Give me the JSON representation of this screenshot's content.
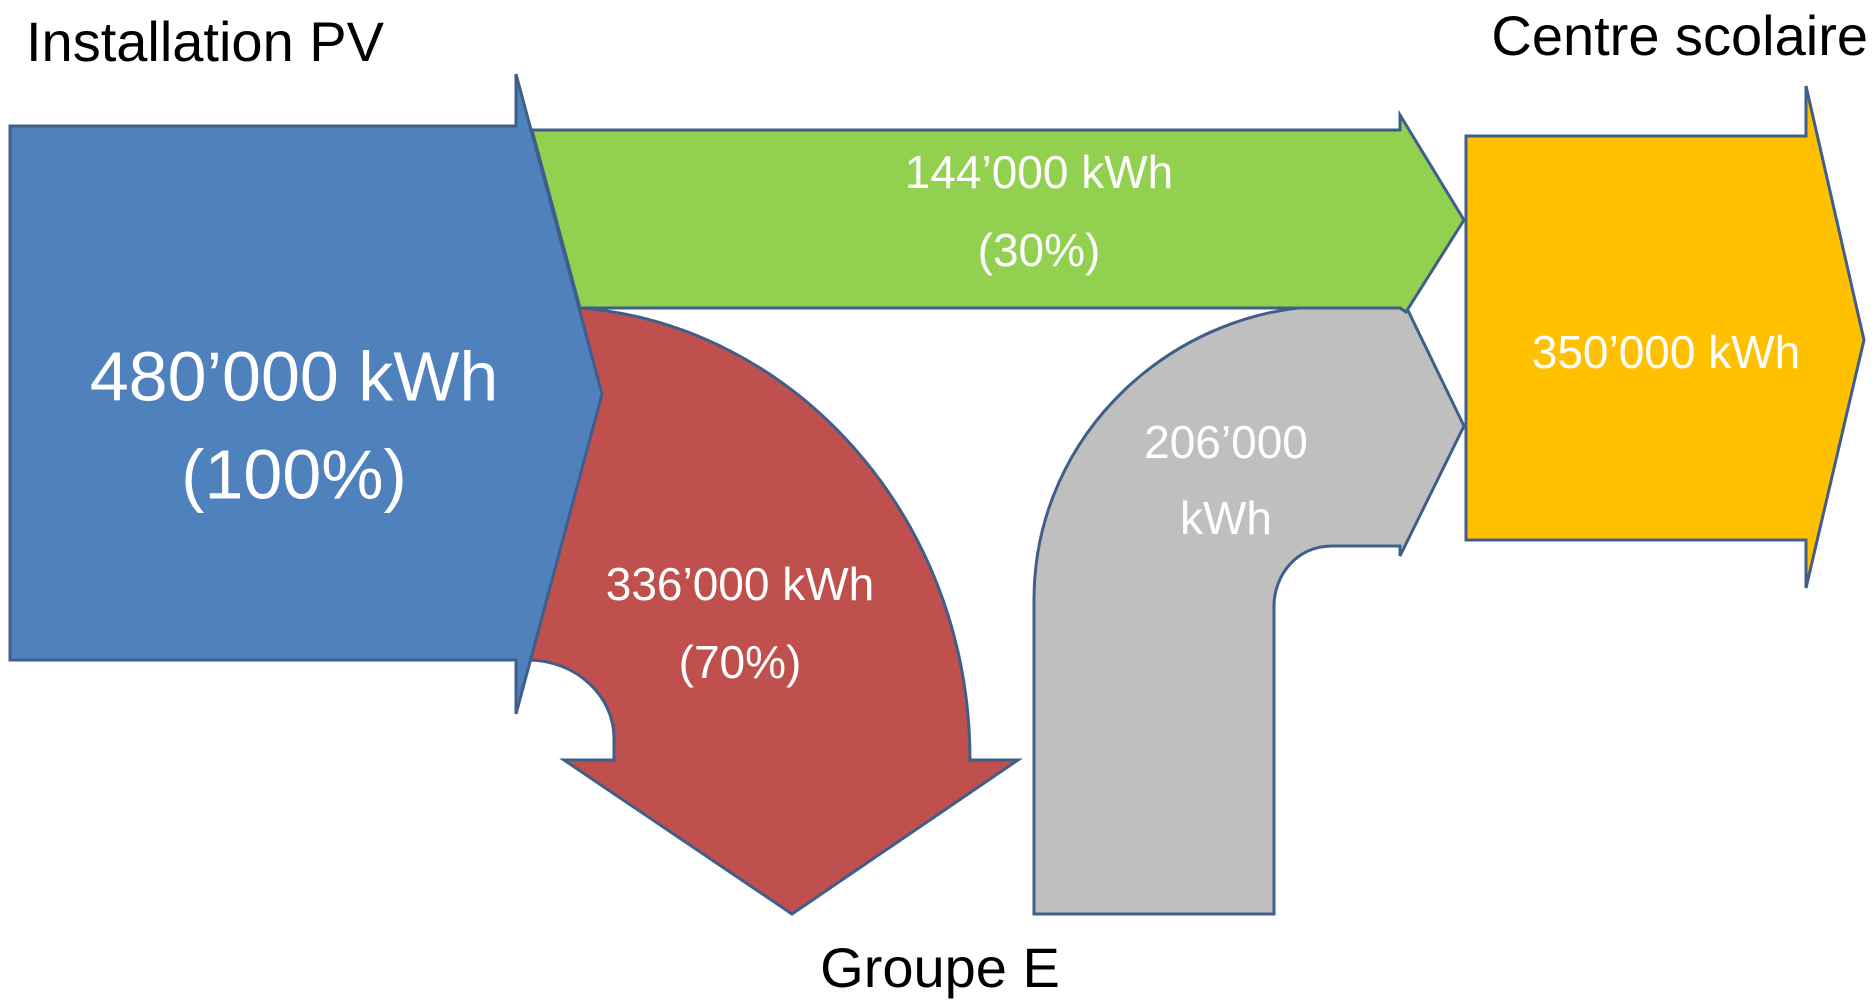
{
  "source": {
    "title": "Installation PV",
    "value": "480’000 kWh",
    "share": "(100%)"
  },
  "flows": [
    {
      "value": "144’000 kWh",
      "share": "(30%)"
    },
    {
      "value": "336’000 kWh",
      "share": "(70%)"
    },
    {
      "lines": [
        "206’000",
        "kWh"
      ]
    }
  ],
  "targets": [
    {
      "title": "Centre scolaire",
      "value": "350’000 kWh"
    },
    {
      "title": "Groupe E"
    }
  ]
}
